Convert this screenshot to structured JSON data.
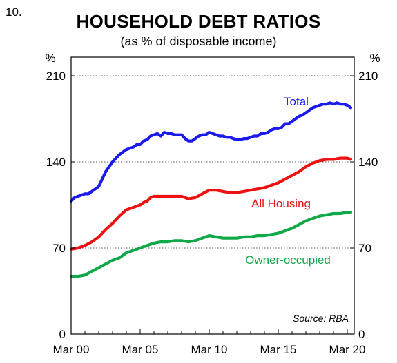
{
  "figure": {
    "number": "10."
  },
  "colors": {
    "total": "#1a1aee",
    "housing": "#ee1111",
    "owner": "#11a84a"
  },
  "chart_data": {
    "type": "line",
    "title": "HOUSEHOLD DEBT RATIOS",
    "subtitle": "(as % of disposable income)",
    "ylabel_left": "%",
    "ylabel_right": "%",
    "ylim": [
      0,
      210
    ],
    "yticks": [
      0,
      70,
      140,
      210
    ],
    "xlim": [
      2000.0,
      2020.5
    ],
    "xticks": [
      {
        "x": 2000,
        "label": "Mar 00"
      },
      {
        "x": 2005,
        "label": "Mar 05"
      },
      {
        "x": 2010,
        "label": "Mar 10"
      },
      {
        "x": 2015,
        "label": "Mar 15"
      },
      {
        "x": 2020,
        "label": "Mar 20"
      }
    ],
    "grid": "horizontal-dotted",
    "source": "Source: RBA",
    "series": [
      {
        "name": "Total",
        "color_key": "total",
        "label_at": [
          2016.3,
          186
        ],
        "points": [
          [
            2000.0,
            108
          ],
          [
            2000.25,
            111
          ],
          [
            2000.5,
            112
          ],
          [
            2000.75,
            113
          ],
          [
            2001.0,
            114
          ],
          [
            2001.25,
            114
          ],
          [
            2001.5,
            116
          ],
          [
            2001.75,
            118
          ],
          [
            2002.0,
            120
          ],
          [
            2002.25,
            126
          ],
          [
            2002.5,
            132
          ],
          [
            2002.75,
            136
          ],
          [
            2003.0,
            140
          ],
          [
            2003.25,
            143
          ],
          [
            2003.5,
            146
          ],
          [
            2003.75,
            148
          ],
          [
            2004.0,
            150
          ],
          [
            2004.25,
            151
          ],
          [
            2004.5,
            152
          ],
          [
            2004.75,
            154
          ],
          [
            2005.0,
            154
          ],
          [
            2005.25,
            157
          ],
          [
            2005.5,
            158
          ],
          [
            2005.75,
            161
          ],
          [
            2006.0,
            162
          ],
          [
            2006.25,
            163
          ],
          [
            2006.5,
            161
          ],
          [
            2006.75,
            164
          ],
          [
            2007.0,
            163
          ],
          [
            2007.25,
            163
          ],
          [
            2007.5,
            162
          ],
          [
            2007.75,
            162
          ],
          [
            2008.0,
            162
          ],
          [
            2008.25,
            159
          ],
          [
            2008.5,
            157
          ],
          [
            2008.75,
            157
          ],
          [
            2009.0,
            159
          ],
          [
            2009.25,
            161
          ],
          [
            2009.5,
            162
          ],
          [
            2009.75,
            162
          ],
          [
            2010.0,
            164
          ],
          [
            2010.25,
            163
          ],
          [
            2010.5,
            162
          ],
          [
            2010.75,
            161
          ],
          [
            2011.0,
            161
          ],
          [
            2011.25,
            160
          ],
          [
            2011.5,
            160
          ],
          [
            2011.75,
            159
          ],
          [
            2012.0,
            158
          ],
          [
            2012.25,
            158
          ],
          [
            2012.5,
            159
          ],
          [
            2012.75,
            159
          ],
          [
            2013.0,
            160
          ],
          [
            2013.25,
            161
          ],
          [
            2013.5,
            161
          ],
          [
            2013.75,
            163
          ],
          [
            2014.0,
            163
          ],
          [
            2014.25,
            164
          ],
          [
            2014.5,
            166
          ],
          [
            2014.75,
            167
          ],
          [
            2015.0,
            167
          ],
          [
            2015.25,
            168
          ],
          [
            2015.5,
            171
          ],
          [
            2015.75,
            171
          ],
          [
            2016.0,
            173
          ],
          [
            2016.25,
            175
          ],
          [
            2016.5,
            177
          ],
          [
            2016.75,
            178
          ],
          [
            2017.0,
            180
          ],
          [
            2017.25,
            182
          ],
          [
            2017.5,
            184
          ],
          [
            2017.75,
            185
          ],
          [
            2018.0,
            186
          ],
          [
            2018.25,
            187
          ],
          [
            2018.5,
            187
          ],
          [
            2018.75,
            188
          ],
          [
            2019.0,
            187
          ],
          [
            2019.25,
            188
          ],
          [
            2019.5,
            187
          ],
          [
            2019.75,
            187
          ],
          [
            2020.0,
            186
          ],
          [
            2020.25,
            184
          ]
        ]
      },
      {
        "name": "All Housing",
        "color_key": "housing",
        "label_at": [
          2015.2,
          103
        ],
        "points": [
          [
            2000.0,
            69
          ],
          [
            2000.5,
            70
          ],
          [
            2001.0,
            72
          ],
          [
            2001.5,
            75
          ],
          [
            2002.0,
            79
          ],
          [
            2002.5,
            85
          ],
          [
            2003.0,
            90
          ],
          [
            2003.5,
            96
          ],
          [
            2004.0,
            101
          ],
          [
            2004.5,
            103
          ],
          [
            2005.0,
            105
          ],
          [
            2005.25,
            107
          ],
          [
            2005.5,
            108
          ],
          [
            2005.75,
            111
          ],
          [
            2006.0,
            112
          ],
          [
            2006.5,
            112
          ],
          [
            2007.0,
            112
          ],
          [
            2007.5,
            112
          ],
          [
            2008.0,
            112
          ],
          [
            2008.5,
            110
          ],
          [
            2009.0,
            111
          ],
          [
            2009.5,
            114
          ],
          [
            2010.0,
            117
          ],
          [
            2010.5,
            117
          ],
          [
            2011.0,
            116
          ],
          [
            2011.5,
            115
          ],
          [
            2012.0,
            115
          ],
          [
            2012.5,
            116
          ],
          [
            2013.0,
            117
          ],
          [
            2013.5,
            118
          ],
          [
            2014.0,
            119
          ],
          [
            2014.5,
            121
          ],
          [
            2015.0,
            123
          ],
          [
            2015.5,
            126
          ],
          [
            2016.0,
            129
          ],
          [
            2016.5,
            132
          ],
          [
            2017.0,
            136
          ],
          [
            2017.5,
            139
          ],
          [
            2018.0,
            141
          ],
          [
            2018.5,
            142
          ],
          [
            2019.0,
            142
          ],
          [
            2019.5,
            143
          ],
          [
            2020.0,
            143
          ],
          [
            2020.25,
            142
          ]
        ]
      },
      {
        "name": "Owner-occupied",
        "color_key": "owner",
        "label_at": [
          2015.7,
          57
        ],
        "points": [
          [
            2000.0,
            47
          ],
          [
            2000.5,
            47
          ],
          [
            2001.0,
            48
          ],
          [
            2001.5,
            51
          ],
          [
            2002.0,
            54
          ],
          [
            2002.5,
            57
          ],
          [
            2003.0,
            60
          ],
          [
            2003.5,
            62
          ],
          [
            2004.0,
            66
          ],
          [
            2004.5,
            68
          ],
          [
            2005.0,
            70
          ],
          [
            2005.5,
            72
          ],
          [
            2006.0,
            74
          ],
          [
            2006.5,
            75
          ],
          [
            2007.0,
            75
          ],
          [
            2007.5,
            76
          ],
          [
            2008.0,
            76
          ],
          [
            2008.5,
            75
          ],
          [
            2009.0,
            76
          ],
          [
            2009.5,
            78
          ],
          [
            2010.0,
            80
          ],
          [
            2010.5,
            79
          ],
          [
            2011.0,
            78
          ],
          [
            2011.5,
            78
          ],
          [
            2012.0,
            78
          ],
          [
            2012.5,
            79
          ],
          [
            2013.0,
            79
          ],
          [
            2013.5,
            80
          ],
          [
            2014.0,
            80
          ],
          [
            2014.5,
            81
          ],
          [
            2015.0,
            82
          ],
          [
            2015.5,
            84
          ],
          [
            2016.0,
            86
          ],
          [
            2016.5,
            89
          ],
          [
            2017.0,
            92
          ],
          [
            2017.5,
            94
          ],
          [
            2018.0,
            96
          ],
          [
            2018.5,
            97
          ],
          [
            2019.0,
            98
          ],
          [
            2019.5,
            98
          ],
          [
            2020.0,
            99
          ],
          [
            2020.25,
            99
          ]
        ]
      }
    ]
  }
}
